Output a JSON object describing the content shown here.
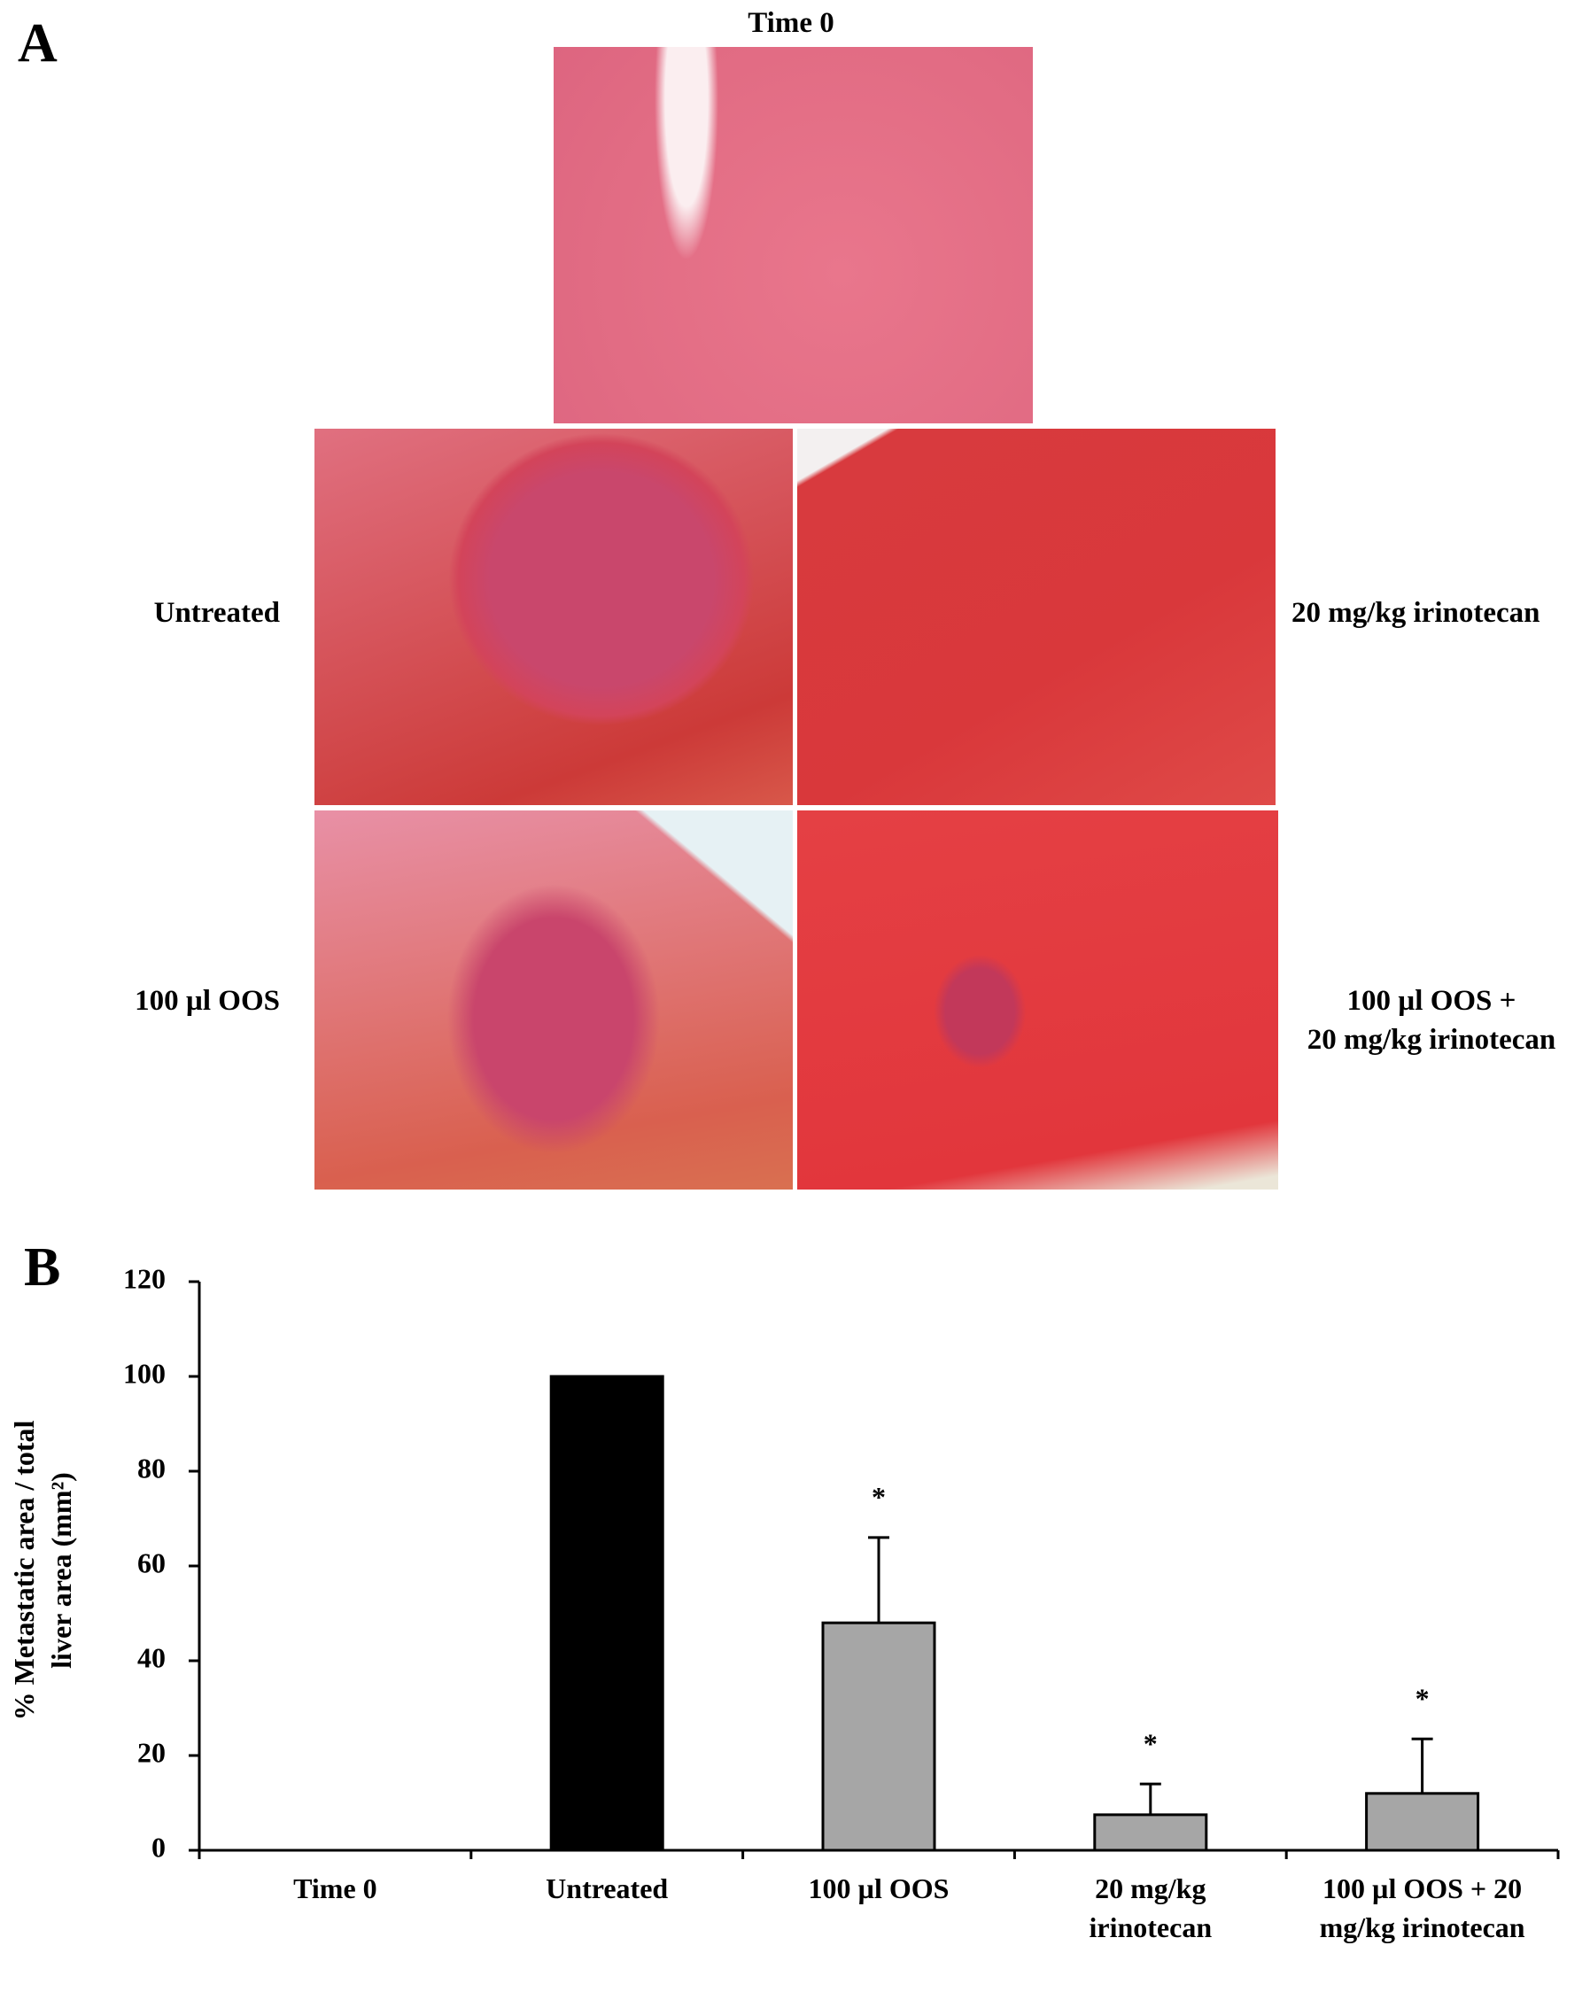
{
  "panel_a": {
    "label": "A",
    "images": [
      {
        "label": "Time 0"
      },
      {
        "label": "Untreated"
      },
      {
        "label": "20 mg/kg irinotecan"
      },
      {
        "label": "100 µl OOS"
      },
      {
        "label": [
          "100 µl OOS +",
          "20 mg/kg irinotecan"
        ]
      }
    ]
  },
  "chart_data": {
    "type": "bar",
    "panel_label": "B",
    "y_label": "% Metastatic area / total liver area (mm²)",
    "categories": [
      "Time 0",
      "Untreated",
      "100 µl OOS",
      "20 mg/kg irinotecan",
      "100 µl OOS + 20 mg/kg irinotecan"
    ],
    "values": [
      0,
      100,
      48,
      7.5,
      12
    ],
    "errors": [
      null,
      null,
      18,
      6.5,
      11.5
    ],
    "markers": [
      null,
      null,
      "*",
      "*",
      "*"
    ],
    "colors": [
      "#000000",
      "#000000",
      "#a6a6a6",
      "#a6a6a6",
      "#a6a6a6"
    ],
    "ylim": [
      0,
      120
    ],
    "yticks": [
      0,
      20,
      40,
      60,
      80,
      100,
      120
    ],
    "grid": false
  }
}
